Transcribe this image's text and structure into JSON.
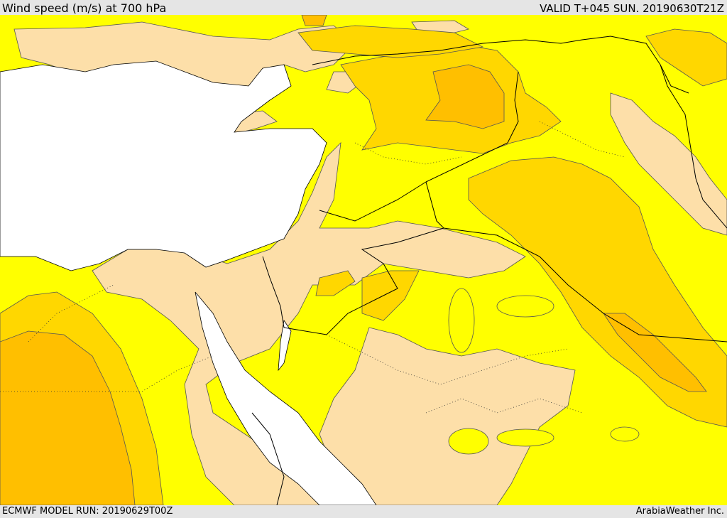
{
  "header": {
    "title": "Wind speed (m/s) at 700 hPa",
    "valid": "VALID T+045 SUN. 20190630T21Z"
  },
  "footer": {
    "model_run": "ECMWF MODEL RUN: 20190629T00Z",
    "credit": "ArabiaWeather Inc."
  },
  "map": {
    "colors": {
      "sea": "#ffffff",
      "band_low": "#fddfa9",
      "band_mid": "#ffff00",
      "band_high": "#ffd700",
      "band_higher": "#ffbf00",
      "contour": "#555555",
      "border": "#000000"
    }
  }
}
